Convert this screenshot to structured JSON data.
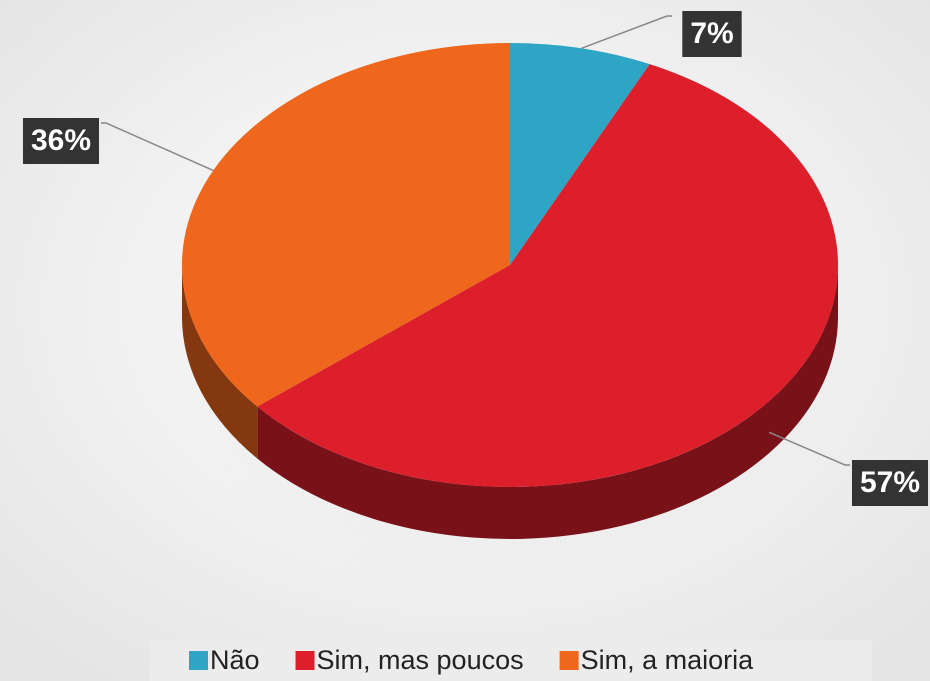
{
  "chart_data": {
    "type": "pie",
    "categories": [
      "Não",
      "Sim, mas poucos",
      "Sim, a maioria"
    ],
    "values": [
      7,
      57,
      36
    ],
    "value_labels": [
      "7%",
      "57%",
      "36%"
    ],
    "colors": [
      "#2ea5c4",
      "#dc1f2b",
      "#ef661d"
    ],
    "legend": "bottom"
  }
}
